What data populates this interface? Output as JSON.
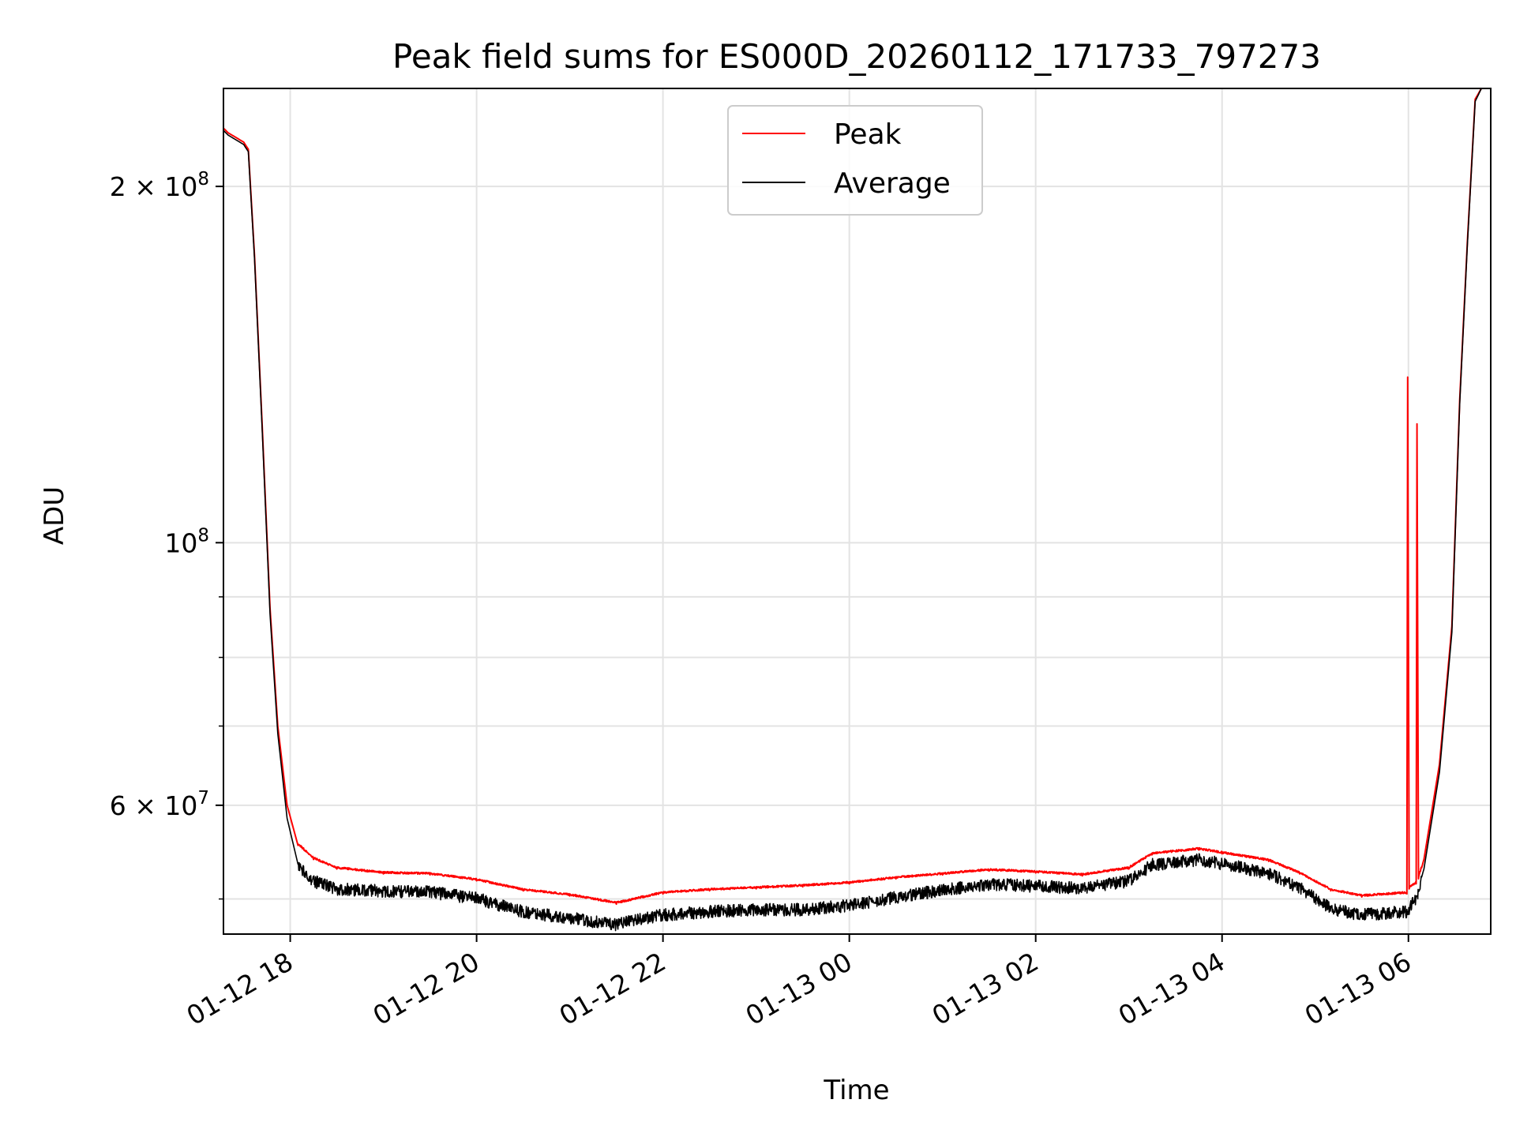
{
  "chart_data": {
    "type": "line",
    "title": "Peak field sums for ES000D_20260112_171733_797273",
    "xlabel": "Time",
    "ylabel": "ADU",
    "yscale": "log",
    "grid": true,
    "legend_position": "top-center",
    "xlim": [
      "2026-01-12 17:17",
      "2026-01-13 06:53"
    ],
    "ylim": [
      46700000,
      242000000
    ],
    "x_ticks": [
      {
        "value": "2026-01-12 18:00",
        "label": "01-12 18"
      },
      {
        "value": "2026-01-12 20:00",
        "label": "01-12 20"
      },
      {
        "value": "2026-01-12 22:00",
        "label": "01-12 22"
      },
      {
        "value": "2026-01-13 00:00",
        "label": "01-13 00"
      },
      {
        "value": "2026-01-13 02:00",
        "label": "01-13 02"
      },
      {
        "value": "2026-01-13 04:00",
        "label": "01-13 04"
      },
      {
        "value": "2026-01-13 06:00",
        "label": "01-13 06"
      }
    ],
    "y_ticks_major": [
      {
        "value": 200000000,
        "mantissa": "2",
        "exponent": "8"
      },
      {
        "value": 100000000,
        "mantissa": "",
        "exponent": "8"
      },
      {
        "value": 60000000,
        "mantissa": "6",
        "exponent": "7"
      }
    ],
    "y_ticks_minor": [
      50000000,
      70000000,
      80000000,
      90000000
    ],
    "series": [
      {
        "name": "Peak",
        "color": "#ff0000",
        "points": [
          [
            "2026-01-12 17:17",
            224000000
          ],
          [
            "2026-01-12 17:20",
            222000000
          ],
          [
            "2026-01-12 17:30",
            218000000
          ],
          [
            "2026-01-12 17:33",
            215000000
          ],
          [
            "2026-01-12 17:37",
            175000000
          ],
          [
            "2026-01-12 17:42",
            125000000
          ],
          [
            "2026-01-12 17:47",
            88000000
          ],
          [
            "2026-01-12 17:52",
            70000000
          ],
          [
            "2026-01-12 17:58",
            60000000
          ],
          [
            "2026-01-12 18:05",
            55500000
          ],
          [
            "2026-01-12 18:15",
            54000000
          ],
          [
            "2026-01-12 18:30",
            53000000
          ],
          [
            "2026-01-12 19:00",
            52500000
          ],
          [
            "2026-01-12 19:30",
            52400000
          ],
          [
            "2026-01-12 20:00",
            51800000
          ],
          [
            "2026-01-12 20:30",
            50800000
          ],
          [
            "2026-01-12 21:00",
            50300000
          ],
          [
            "2026-01-12 21:30",
            49500000
          ],
          [
            "2026-01-12 22:00",
            50500000
          ],
          [
            "2026-01-12 22:30",
            50800000
          ],
          [
            "2026-01-12 23:00",
            51000000
          ],
          [
            "2026-01-12 23:30",
            51200000
          ],
          [
            "2026-01-13 00:00",
            51500000
          ],
          [
            "2026-01-13 00:30",
            52000000
          ],
          [
            "2026-01-13 01:00",
            52400000
          ],
          [
            "2026-01-13 01:30",
            52800000
          ],
          [
            "2026-01-13 02:00",
            52600000
          ],
          [
            "2026-01-13 02:30",
            52300000
          ],
          [
            "2026-01-13 03:00",
            53000000
          ],
          [
            "2026-01-13 03:15",
            54500000
          ],
          [
            "2026-01-13 03:45",
            55000000
          ],
          [
            "2026-01-13 04:00",
            54600000
          ],
          [
            "2026-01-13 04:30",
            53800000
          ],
          [
            "2026-01-13 04:50",
            52500000
          ],
          [
            "2026-01-13 05:10",
            50800000
          ],
          [
            "2026-01-13 05:30",
            50200000
          ],
          [
            "2026-01-13 05:59",
            50500000
          ],
          [
            "2026-01-13 05:59.5",
            138000000
          ],
          [
            "2026-01-13 06:00.5",
            51000000
          ],
          [
            "2026-01-13 06:05",
            51500000
          ],
          [
            "2026-01-13 06:05.5",
            126000000
          ],
          [
            "2026-01-13 06:06.5",
            52000000
          ],
          [
            "2026-01-13 06:10",
            54000000
          ],
          [
            "2026-01-13 06:20",
            65000000
          ],
          [
            "2026-01-13 06:28",
            85000000
          ],
          [
            "2026-01-13 06:33",
            132000000
          ],
          [
            "2026-01-13 06:38",
            180000000
          ],
          [
            "2026-01-13 06:43",
            237000000
          ],
          [
            "2026-01-13 06:47",
            242000000
          ],
          [
            "2026-01-13 06:53",
            242000000
          ]
        ]
      },
      {
        "name": "Average",
        "color": "#000000",
        "points": [
          [
            "2026-01-12 17:17",
            223000000
          ],
          [
            "2026-01-12 17:20",
            221000000
          ],
          [
            "2026-01-12 17:30",
            217000000
          ],
          [
            "2026-01-12 17:33",
            214000000
          ],
          [
            "2026-01-12 17:37",
            174000000
          ],
          [
            "2026-01-12 17:42",
            124000000
          ],
          [
            "2026-01-12 17:47",
            87000000
          ],
          [
            "2026-01-12 17:52",
            69000000
          ],
          [
            "2026-01-12 17:58",
            58500000
          ],
          [
            "2026-01-12 18:05",
            53500000
          ],
          [
            "2026-01-12 18:15",
            52000000
          ],
          [
            "2026-01-12 18:30",
            51200000
          ],
          [
            "2026-01-12 19:00",
            51000000
          ],
          [
            "2026-01-12 19:30",
            50900000
          ],
          [
            "2026-01-12 20:00",
            50300000
          ],
          [
            "2026-01-12 20:30",
            49000000
          ],
          [
            "2026-01-12 21:00",
            48400000
          ],
          [
            "2026-01-12 21:30",
            47800000
          ],
          [
            "2026-01-12 22:00",
            48700000
          ],
          [
            "2026-01-12 22:30",
            49000000
          ],
          [
            "2026-01-12 23:00",
            49200000
          ],
          [
            "2026-01-12 23:30",
            49200000
          ],
          [
            "2026-01-13 00:00",
            49600000
          ],
          [
            "2026-01-13 00:30",
            50400000
          ],
          [
            "2026-01-13 01:00",
            51100000
          ],
          [
            "2026-01-13 01:30",
            51700000
          ],
          [
            "2026-01-13 02:00",
            51500000
          ],
          [
            "2026-01-13 02:30",
            51300000
          ],
          [
            "2026-01-13 03:00",
            52000000
          ],
          [
            "2026-01-13 03:15",
            53700000
          ],
          [
            "2026-01-13 03:45",
            54200000
          ],
          [
            "2026-01-13 04:00",
            53800000
          ],
          [
            "2026-01-13 04:30",
            52800000
          ],
          [
            "2026-01-13 04:50",
            51300000
          ],
          [
            "2026-01-13 05:10",
            49300000
          ],
          [
            "2026-01-13 05:30",
            48700000
          ],
          [
            "2026-01-13 05:59",
            49000000
          ],
          [
            "2026-01-13 06:05",
            50300000
          ],
          [
            "2026-01-13 06:10",
            53000000
          ],
          [
            "2026-01-13 06:20",
            64000000
          ],
          [
            "2026-01-13 06:28",
            84000000
          ],
          [
            "2026-01-13 06:33",
            131000000
          ],
          [
            "2026-01-13 06:38",
            179000000
          ],
          [
            "2026-01-13 06:43",
            236000000
          ],
          [
            "2026-01-13 06:47",
            242000000
          ],
          [
            "2026-01-13 06:53",
            242000000
          ]
        ]
      }
    ]
  }
}
